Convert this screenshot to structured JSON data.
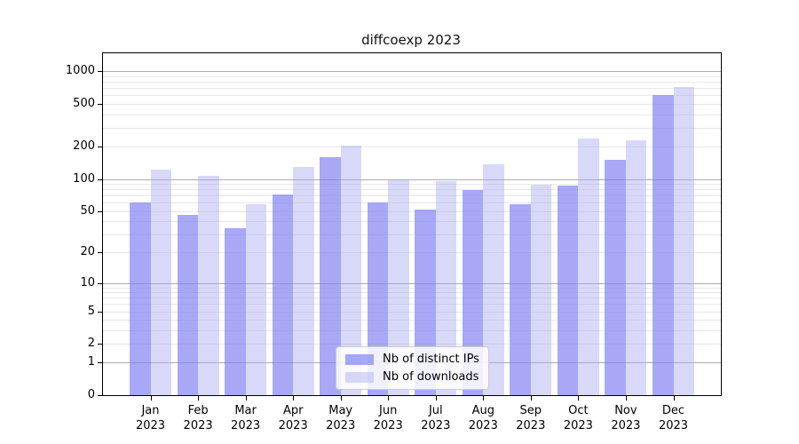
{
  "chart_data": {
    "type": "bar",
    "title": "diffcoexp 2023",
    "categories": [
      "Jan 2023",
      "Feb 2023",
      "Mar 2023",
      "Apr 2023",
      "May 2023",
      "Jun 2023",
      "Jul 2023",
      "Aug 2023",
      "Sep 2023",
      "Oct 2023",
      "Nov 2023",
      "Dec 2023"
    ],
    "series": [
      {
        "name": "Nb of distinct IPs",
        "color": "rgba(127,127,242,0.68)",
        "color_hex": "#a8a8f6",
        "values": [
          60,
          46,
          34,
          72,
          160,
          60,
          52,
          78,
          58,
          87,
          150,
          600
        ]
      },
      {
        "name": "Nb of downloads",
        "color": "rgba(169,169,242,0.45)",
        "color_hex": "#d8d8f9",
        "values": [
          122,
          108,
          58,
          130,
          205,
          98,
          96,
          136,
          89,
          240,
          228,
          720
        ]
      }
    ],
    "xlabel": "",
    "ylabel": "",
    "yscale": "log10(value+1)",
    "ylim": [
      0,
      1470
    ],
    "yticks": [
      1000,
      500,
      200,
      100,
      50,
      20,
      10,
      5,
      2,
      1,
      0
    ],
    "ytick_labels": [
      "1000",
      "500",
      "200",
      "100",
      "50",
      "20",
      "10",
      "5",
      "2",
      "1",
      "0"
    ],
    "grid": "horizontal, log minor + major decade lines",
    "legend_position": "inside-bottom-center",
    "colors": {
      "major_gridline": "#ababab",
      "minor_gridline": "#e8e8e8",
      "axis": "#000000",
      "background": "#ffffff"
    }
  }
}
